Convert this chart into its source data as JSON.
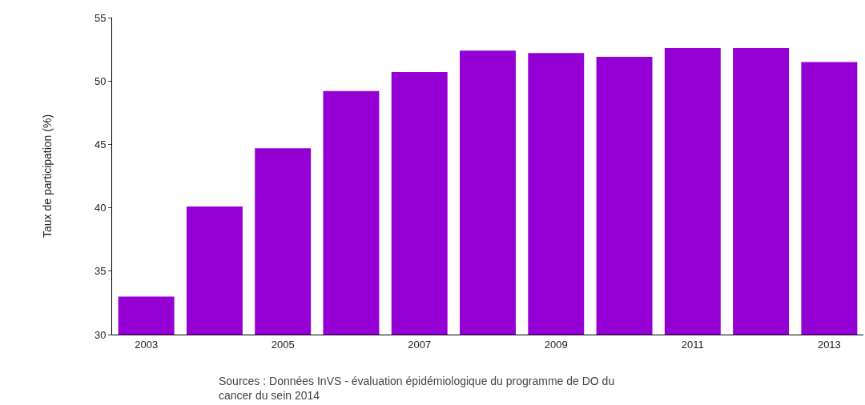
{
  "chart_data": {
    "type": "bar",
    "ylabel": "Taux de participation (%)",
    "categories": [
      "2003",
      null,
      "2005",
      null,
      "2007",
      null,
      "2009",
      null,
      "2011",
      null,
      "2013"
    ],
    "values": [
      33.0,
      40.1,
      44.7,
      49.2,
      50.7,
      52.4,
      52.2,
      51.9,
      52.6,
      52.6,
      51.5
    ],
    "color": "#9400d3",
    "ylim": [
      30,
      55
    ],
    "yticks": [
      30,
      35,
      40,
      45,
      50,
      55
    ],
    "grid": false,
    "annotations": [
      "Sources : Données InVS - évaluation épidémiologique du programme de DO du cancer du sein 2014"
    ]
  }
}
